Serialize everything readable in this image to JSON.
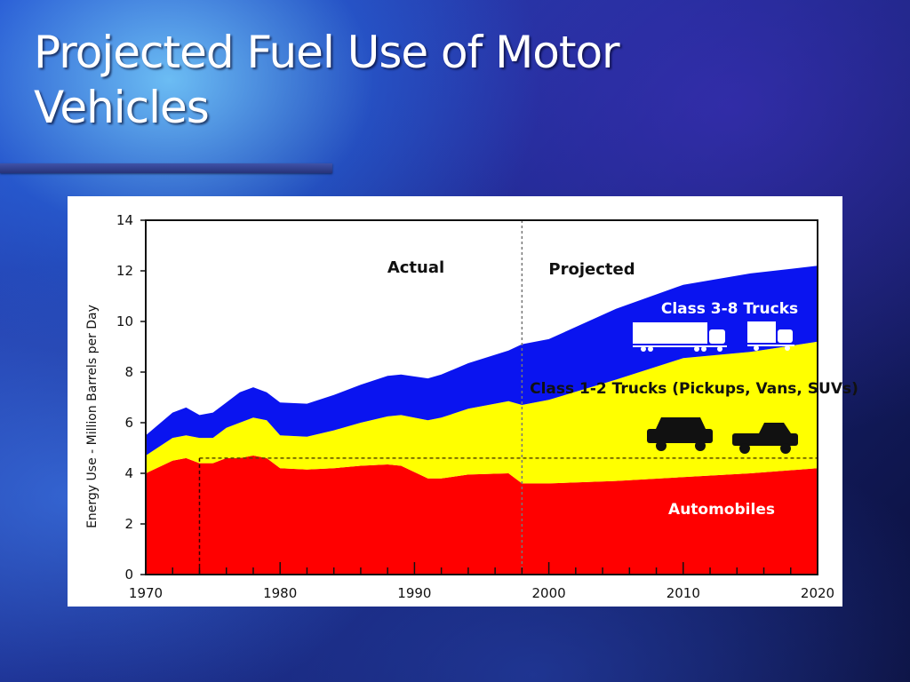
{
  "slide": {
    "title_line1": "Projected Fuel Use of Motor",
    "title_line2": "Vehicles"
  },
  "colors": {
    "automobiles": "#ff0000",
    "light_trucks": "#ffff00",
    "heavy_trucks": "#0a14f0"
  },
  "chart_data": {
    "type": "area",
    "stacked": true,
    "title": "",
    "xlabel": "",
    "ylabel": "Energy Use - Million Barrels per Day",
    "xlim": [
      1970,
      2020
    ],
    "ylim": [
      0,
      14
    ],
    "x_ticks": [
      "1970",
      "1980",
      "1990",
      "2000",
      "2010",
      "2020"
    ],
    "y_ticks": [
      "0",
      "2",
      "4",
      "6",
      "8",
      "10",
      "12",
      "14"
    ],
    "grid": false,
    "regions": [
      {
        "label": "Actual"
      },
      {
        "label": "Projected"
      }
    ],
    "divider_year": 1998,
    "reference_level": 4.6,
    "reference_start_year": 1974,
    "x": [
      1970,
      1972,
      1973,
      1974,
      1975,
      1976,
      1977,
      1978,
      1979,
      1980,
      1982,
      1984,
      1986,
      1988,
      1989,
      1991,
      1992,
      1994,
      1997,
      1998,
      2000,
      2005,
      2010,
      2015,
      2020
    ],
    "series": [
      {
        "name": "Automobiles",
        "color": "#ff0000",
        "values": [
          4.0,
          4.5,
          4.6,
          4.4,
          4.4,
          4.6,
          4.6,
          4.7,
          4.6,
          4.2,
          4.15,
          4.2,
          4.3,
          4.35,
          4.3,
          3.8,
          3.8,
          3.95,
          4.0,
          3.6,
          3.6,
          3.7,
          3.85,
          4.0,
          4.2
        ]
      },
      {
        "name": "Class 1-2 Trucks (Pickups, Vans, SUVs)",
        "color": "#ffff00",
        "values": [
          0.7,
          0.9,
          0.9,
          1.0,
          1.0,
          1.2,
          1.4,
          1.5,
          1.5,
          1.3,
          1.3,
          1.5,
          1.7,
          1.9,
          2.0,
          2.3,
          2.4,
          2.6,
          2.85,
          3.1,
          3.3,
          4.0,
          4.7,
          4.8,
          5.0
        ]
      },
      {
        "name": "Class 3-8 Trucks",
        "color": "#0a14f0",
        "values": [
          0.8,
          1.0,
          1.1,
          0.9,
          1.0,
          1.0,
          1.2,
          1.2,
          1.1,
          1.3,
          1.3,
          1.4,
          1.5,
          1.6,
          1.6,
          1.65,
          1.7,
          1.8,
          2.0,
          2.4,
          2.4,
          2.8,
          2.9,
          3.1,
          3.0
        ]
      }
    ]
  }
}
